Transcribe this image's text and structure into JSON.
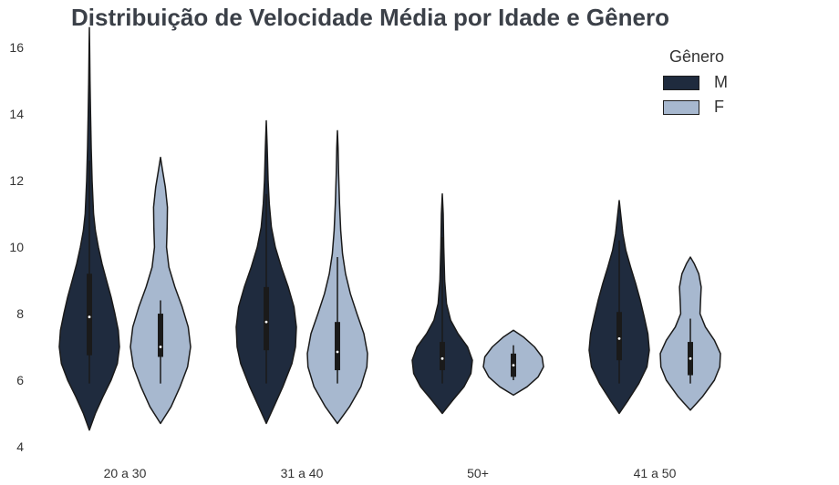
{
  "chart_data": {
    "type": "violin",
    "title": "Distribuição de Velocidade Média por Idade e Gênero",
    "categories": [
      "20 a 30",
      "31 a 40",
      "50+",
      "41 a 50"
    ],
    "ylim": [
      4,
      16.8
    ],
    "yticks": [
      "4",
      "6",
      "8",
      "10",
      "12",
      "14",
      "16"
    ],
    "xlabel": "",
    "ylabel": "",
    "grid": false,
    "legend": {
      "title": "Gênero",
      "position": "top-right"
    },
    "series": [
      {
        "name": "M",
        "color": "#1f2b3e",
        "violins": [
          {
            "min": 4.5,
            "max": 16.6,
            "q1": 6.75,
            "median": 7.9,
            "q3": 9.2,
            "whisker_low": 5.9,
            "whisker_high": 12.6,
            "profile": [
              [
                4.5,
                0
              ],
              [
                5.0,
                0.2
              ],
              [
                5.5,
                0.45
              ],
              [
                6.0,
                0.72
              ],
              [
                6.5,
                0.93
              ],
              [
                7.0,
                1.0
              ],
              [
                7.5,
                0.96
              ],
              [
                8.0,
                0.85
              ],
              [
                8.5,
                0.72
              ],
              [
                9.0,
                0.57
              ],
              [
                9.5,
                0.42
              ],
              [
                10.0,
                0.3
              ],
              [
                10.5,
                0.2
              ],
              [
                11.0,
                0.14
              ],
              [
                12.0,
                0.09
              ],
              [
                13.0,
                0.06
              ],
              [
                14.0,
                0.04
              ],
              [
                15.0,
                0.02
              ],
              [
                16.0,
                0.01
              ],
              [
                16.6,
                0
              ]
            ]
          },
          {
            "min": 4.7,
            "max": 13.8,
            "q1": 6.9,
            "median": 7.75,
            "q3": 8.8,
            "whisker_low": 5.9,
            "whisker_high": 11.6,
            "profile": [
              [
                4.7,
                0
              ],
              [
                5.2,
                0.25
              ],
              [
                5.8,
                0.55
              ],
              [
                6.5,
                0.85
              ],
              [
                7.0,
                0.97
              ],
              [
                7.6,
                1.0
              ],
              [
                8.2,
                0.92
              ],
              [
                8.8,
                0.73
              ],
              [
                9.4,
                0.5
              ],
              [
                10.0,
                0.3
              ],
              [
                10.6,
                0.17
              ],
              [
                11.3,
                0.1
              ],
              [
                12.0,
                0.06
              ],
              [
                13.0,
                0.03
              ],
              [
                13.8,
                0
              ]
            ]
          },
          {
            "min": 5.0,
            "max": 11.6,
            "q1": 6.3,
            "median": 6.65,
            "q3": 7.15,
            "whisker_low": 5.9,
            "whisker_high": 10.3,
            "profile": [
              [
                5.0,
                0
              ],
              [
                5.4,
                0.35
              ],
              [
                5.8,
                0.72
              ],
              [
                6.2,
                0.95
              ],
              [
                6.6,
                1.0
              ],
              [
                7.0,
                0.84
              ],
              [
                7.4,
                0.52
              ],
              [
                7.8,
                0.28
              ],
              [
                8.3,
                0.14
              ],
              [
                9.0,
                0.08
              ],
              [
                10.0,
                0.05
              ],
              [
                11.0,
                0.03
              ],
              [
                11.6,
                0
              ]
            ]
          },
          {
            "min": 5.0,
            "max": 11.4,
            "q1": 6.6,
            "median": 7.25,
            "q3": 8.05,
            "whisker_low": 5.9,
            "whisker_high": 10.2,
            "profile": [
              [
                5.0,
                0
              ],
              [
                5.4,
                0.3
              ],
              [
                5.9,
                0.65
              ],
              [
                6.4,
                0.92
              ],
              [
                6.9,
                1.0
              ],
              [
                7.4,
                0.95
              ],
              [
                7.9,
                0.83
              ],
              [
                8.4,
                0.7
              ],
              [
                8.9,
                0.55
              ],
              [
                9.4,
                0.38
              ],
              [
                9.9,
                0.22
              ],
              [
                10.4,
                0.12
              ],
              [
                10.9,
                0.06
              ],
              [
                11.4,
                0
              ]
            ]
          }
        ]
      },
      {
        "name": "F",
        "color": "#a7b8cf",
        "violins": [
          {
            "min": 4.7,
            "max": 12.7,
            "q1": 6.7,
            "median": 7.0,
            "q3": 8.0,
            "whisker_low": 5.9,
            "whisker_high": 8.4,
            "profile": [
              [
                4.7,
                0
              ],
              [
                5.2,
                0.35
              ],
              [
                5.8,
                0.65
              ],
              [
                6.4,
                0.9
              ],
              [
                7.0,
                1.0
              ],
              [
                7.6,
                0.92
              ],
              [
                8.2,
                0.72
              ],
              [
                8.8,
                0.48
              ],
              [
                9.4,
                0.28
              ],
              [
                10.0,
                0.2
              ],
              [
                10.6,
                0.22
              ],
              [
                11.2,
                0.23
              ],
              [
                11.8,
                0.16
              ],
              [
                12.3,
                0.07
              ],
              [
                12.7,
                0
              ]
            ]
          },
          {
            "min": 4.7,
            "max": 13.5,
            "q1": 6.3,
            "median": 6.85,
            "q3": 7.75,
            "whisker_low": 5.9,
            "whisker_high": 9.7,
            "profile": [
              [
                4.7,
                0
              ],
              [
                5.2,
                0.4
              ],
              [
                5.8,
                0.78
              ],
              [
                6.4,
                0.98
              ],
              [
                6.8,
                1.0
              ],
              [
                7.4,
                0.88
              ],
              [
                8.0,
                0.65
              ],
              [
                8.6,
                0.43
              ],
              [
                9.2,
                0.27
              ],
              [
                9.8,
                0.17
              ],
              [
                10.5,
                0.11
              ],
              [
                11.3,
                0.07
              ],
              [
                12.2,
                0.04
              ],
              [
                13.0,
                0.02
              ],
              [
                13.5,
                0
              ]
            ]
          },
          {
            "min": 5.55,
            "max": 7.5,
            "q1": 6.1,
            "median": 6.45,
            "q3": 6.8,
            "whisker_low": 6.0,
            "whisker_high": 7.05,
            "profile": [
              [
                5.55,
                0
              ],
              [
                5.8,
                0.45
              ],
              [
                6.1,
                0.82
              ],
              [
                6.4,
                1.0
              ],
              [
                6.7,
                0.95
              ],
              [
                7.0,
                0.7
              ],
              [
                7.3,
                0.33
              ],
              [
                7.5,
                0
              ]
            ]
          },
          {
            "min": 5.1,
            "max": 9.7,
            "q1": 6.15,
            "median": 6.65,
            "q3": 7.15,
            "whisker_low": 5.9,
            "whisker_high": 7.85,
            "profile": [
              [
                5.1,
                0
              ],
              [
                5.5,
                0.4
              ],
              [
                6.0,
                0.8
              ],
              [
                6.4,
                0.98
              ],
              [
                6.8,
                1.0
              ],
              [
                7.2,
                0.8
              ],
              [
                7.6,
                0.5
              ],
              [
                8.0,
                0.32
              ],
              [
                8.4,
                0.34
              ],
              [
                8.8,
                0.36
              ],
              [
                9.2,
                0.28
              ],
              [
                9.5,
                0.13
              ],
              [
                9.7,
                0
              ]
            ]
          }
        ]
      }
    ]
  }
}
